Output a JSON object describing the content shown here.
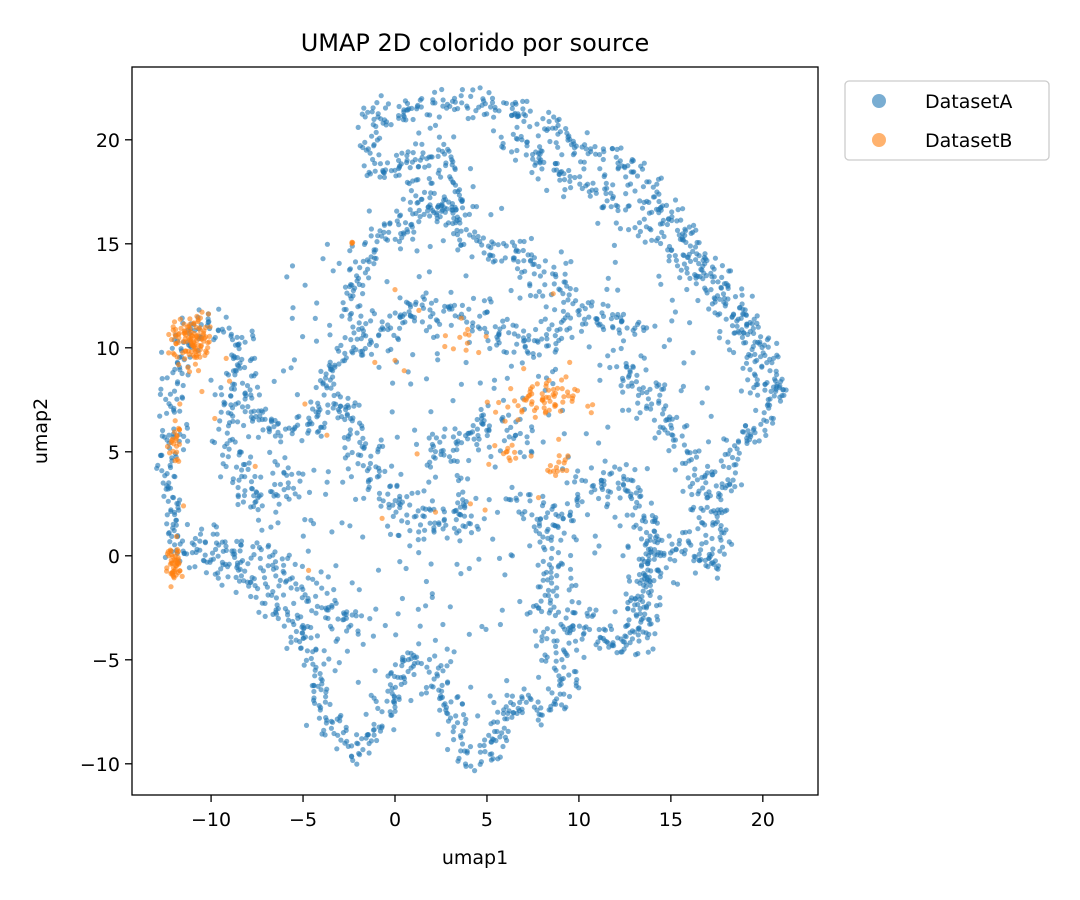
{
  "chart_data": {
    "type": "scatter",
    "title": "UMAP 2D colorido por source",
    "xlabel": "umap1",
    "ylabel": "umap2",
    "xlim": [
      -14.3,
      23
    ],
    "ylim": [
      -11.5,
      23.5
    ],
    "xticks": [
      -10,
      -5,
      0,
      5,
      10,
      15,
      20
    ],
    "yticks": [
      -10,
      -5,
      0,
      5,
      10,
      15,
      20
    ],
    "xtick_labels": [
      "−10",
      "−5",
      "0",
      "5",
      "10",
      "15",
      "20"
    ],
    "ytick_labels": [
      "−10",
      "−5",
      "0",
      "5",
      "10",
      "15",
      "20"
    ],
    "grid": false,
    "legend_position": "outside-top-right",
    "series": [
      {
        "name": "DatasetA",
        "color": "#1f77b4",
        "outline": [
          [
            -12.0,
            0.5
          ],
          [
            -12.3,
            4.0
          ],
          [
            -12.0,
            8.0
          ],
          [
            -11.5,
            10.5
          ],
          [
            -10.0,
            11.4
          ],
          [
            -8.5,
            10.2
          ],
          [
            -8.0,
            8.0
          ],
          [
            -7.0,
            6.5
          ],
          [
            -5.5,
            6.0
          ],
          [
            -4.0,
            6.8
          ],
          [
            -3.5,
            9.0
          ],
          [
            -2.0,
            10.5
          ],
          [
            -2.5,
            13.0
          ],
          [
            -1.0,
            15.0
          ],
          [
            1.5,
            16.5
          ],
          [
            3.5,
            17.0
          ],
          [
            2.5,
            19.5
          ],
          [
            -1.0,
            18.5
          ],
          [
            -1.5,
            21.0
          ],
          [
            2.0,
            21.7
          ],
          [
            6.0,
            21.7
          ],
          [
            10.0,
            19.5
          ],
          [
            13.0,
            18.5
          ],
          [
            17.0,
            14.0
          ],
          [
            19.5,
            11.0
          ],
          [
            21.0,
            8.0
          ],
          [
            20.0,
            6.0
          ],
          [
            18.5,
            5.5
          ],
          [
            17.5,
            2.0
          ],
          [
            17.5,
            -0.5
          ],
          [
            15.5,
            0.5
          ],
          [
            14.0,
            0.5
          ],
          [
            13.5,
            -4.0
          ],
          [
            12.0,
            -4.5
          ],
          [
            10.0,
            -3.0
          ],
          [
            8.5,
            -4.0
          ],
          [
            9.5,
            -6.0
          ],
          [
            8.0,
            -7.5
          ],
          [
            6.0,
            -7.0
          ],
          [
            5.5,
            -9.5
          ],
          [
            4.0,
            -9.8
          ],
          [
            3.0,
            -7.5
          ],
          [
            2.0,
            -5.5
          ],
          [
            0.5,
            -5.0
          ],
          [
            -0.5,
            -8.0
          ],
          [
            -2.0,
            -9.5
          ],
          [
            -4.0,
            -7.5
          ],
          [
            -4.5,
            -4.5
          ],
          [
            -6.0,
            -3.0
          ],
          [
            -7.5,
            -1.5
          ],
          [
            -9.5,
            -0.5
          ],
          [
            -12.0,
            0.5
          ]
        ],
        "arms": [
          [
            [
              -10.5,
              0.8
            ],
            [
              -8.5,
              0.3
            ],
            [
              -6.5,
              -0.3
            ],
            [
              -4.8,
              -1.5
            ],
            [
              -3.0,
              -2.8
            ],
            [
              -1.5,
              -3.5
            ]
          ],
          [
            [
              -3.0,
              7.5
            ],
            [
              -2.0,
              5.5
            ],
            [
              -1.0,
              3.5
            ],
            [
              0.5,
              2.0
            ],
            [
              2.5,
              1.5
            ],
            [
              4.0,
              1.5
            ],
            [
              3.5,
              3.0
            ]
          ],
          [
            [
              -1.5,
              10.5
            ],
            [
              0.0,
              11.5
            ],
            [
              2.0,
              12.0
            ],
            [
              4.0,
              11.5
            ],
            [
              6.0,
              10.5
            ],
            [
              7.5,
              10.0
            ],
            [
              9.0,
              11.0
            ],
            [
              10.5,
              12.0
            ],
            [
              12.0,
              11.5
            ],
            [
              13.0,
              10.5
            ]
          ],
          [
            [
              0.5,
              18.5
            ],
            [
              2.0,
              17.0
            ],
            [
              3.5,
              15.5
            ],
            [
              5.0,
              14.5
            ],
            [
              6.5,
              14.5
            ],
            [
              8.0,
              13.5
            ],
            [
              10.0,
              12.5
            ]
          ],
          [
            [
              6.0,
              20.0
            ],
            [
              9.0,
              18.5
            ],
            [
              12.0,
              17.0
            ],
            [
              15.0,
              15.0
            ],
            [
              17.5,
              12.5
            ],
            [
              19.5,
              9.5
            ],
            [
              20.0,
              7.5
            ]
          ],
          [
            [
              12.0,
              9.5
            ],
            [
              13.0,
              8.0
            ],
            [
              14.5,
              7.0
            ],
            [
              15.5,
              5.5
            ],
            [
              16.5,
              3.5
            ],
            [
              17.0,
              1.0
            ]
          ],
          [
            [
              9.0,
              1.5
            ],
            [
              10.0,
              3.0
            ],
            [
              11.5,
              4.0
            ],
            [
              13.0,
              3.0
            ],
            [
              14.0,
              1.0
            ],
            [
              13.5,
              -1.5
            ],
            [
              12.5,
              -3.5
            ]
          ],
          [
            [
              2.0,
              4.5
            ],
            [
              3.0,
              5.5
            ],
            [
              4.5,
              6.0
            ],
            [
              6.0,
              6.0
            ],
            [
              7.5,
              5.0
            ]
          ],
          [
            [
              7.0,
              3.0
            ],
            [
              8.0,
              1.5
            ],
            [
              8.5,
              -1.0
            ],
            [
              8.0,
              -3.0
            ]
          ],
          [
            [
              -9.5,
              8.5
            ],
            [
              -9.0,
              6.0
            ],
            [
              -8.5,
              4.0
            ],
            [
              -7.5,
              2.5
            ],
            [
              -6.0,
              3.5
            ],
            [
              -5.0,
              4.5
            ]
          ]
        ]
      },
      {
        "name": "DatasetB",
        "color": "#ff7f0e",
        "clusters": [
          {
            "center": [
              -11.0,
              10.3
            ],
            "spread": [
              0.6,
              0.6
            ],
            "count": 110
          },
          {
            "center": [
              -12.0,
              -0.4
            ],
            "spread": [
              0.2,
              0.55
            ],
            "count": 45
          },
          {
            "center": [
              -11.9,
              5.3
            ],
            "spread": [
              0.2,
              0.6
            ],
            "count": 22
          },
          {
            "center": [
              7.6,
              7.4
            ],
            "spread": [
              1.1,
              0.5
            ],
            "count": 65
          },
          {
            "center": [
              8.9,
              4.2
            ],
            "spread": [
              0.25,
              0.3
            ],
            "count": 14
          },
          {
            "center": [
              6.2,
              4.9
            ],
            "spread": [
              0.3,
              0.25
            ],
            "count": 10
          },
          {
            "center": [
              3.5,
              10.6
            ],
            "spread": [
              0.7,
              0.6
            ],
            "count": 12
          },
          {
            "center": [
              -2.3,
              15.0
            ],
            "spread": [
              0.08,
              0.05
            ],
            "count": 3
          }
        ],
        "scattered": [
          [
            -9.0,
            8.4
          ],
          [
            -9.8,
            6.6
          ],
          [
            -11.7,
            7.3
          ],
          [
            -10.5,
            7.9
          ],
          [
            -11.5,
            2.4
          ],
          [
            -4.9,
            7.3
          ],
          [
            -3.7,
            5.8
          ],
          [
            -7.6,
            4.3
          ],
          [
            -4.7,
            -0.7
          ],
          [
            -0.7,
            1.8
          ],
          [
            0.0,
            12.8
          ],
          [
            1.3,
            11.8
          ],
          [
            0.0,
            9.4
          ],
          [
            0.5,
            8.9
          ],
          [
            -1.1,
            9.3
          ],
          [
            1.2,
            4.9
          ],
          [
            2.2,
            2.1
          ],
          [
            4.1,
            2.5
          ],
          [
            5.1,
            4.4
          ],
          [
            4.9,
            2.2
          ],
          [
            7.0,
            9.0
          ],
          [
            9.5,
            9.3
          ],
          [
            8.6,
            12.6
          ],
          [
            9.3,
            8.6
          ],
          [
            7.8,
            2.8
          ],
          [
            8.9,
            5.6
          ],
          [
            7.4,
            4.8
          ]
        ]
      }
    ]
  }
}
